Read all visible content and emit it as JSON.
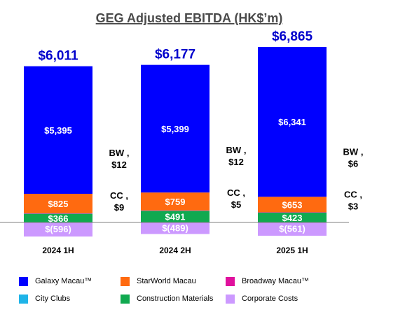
{
  "chart_data": {
    "type": "bar",
    "stacked": true,
    "title": "GEG Adjusted EBITDA (HK$’m)",
    "categories": [
      "2024 1H",
      "2024 2H",
      "2025 1H"
    ],
    "totals": [
      "$6,011",
      "$6,177",
      "$6,865"
    ],
    "total_values": [
      6011,
      6177,
      6865
    ],
    "series": [
      {
        "name": "Galaxy Macau™",
        "color": "#0000FF",
        "values": [
          5395,
          5399,
          6341
        ],
        "labels": [
          "$5,395",
          "$5,399",
          "$6,341"
        ]
      },
      {
        "name": "StarWorld Macau",
        "color": "#FF6A10",
        "values": [
          825,
          759,
          653
        ],
        "labels": [
          "$825",
          "$759",
          "$653"
        ]
      },
      {
        "name": "Broadway Macau™",
        "color": "#E0119D",
        "values": [
          12,
          12,
          6
        ],
        "labels": [
          "BW ,\n$12",
          "BW ,\n$12",
          "BW ,\n$6"
        ]
      },
      {
        "name": "City Clubs",
        "color": "#1FB4E8",
        "values": [
          9,
          5,
          3
        ],
        "labels": [
          "CC ,\n$9",
          "CC ,\n$5",
          "CC ,\n$3"
        ]
      },
      {
        "name": "Construction Materials",
        "color": "#10A950",
        "values": [
          366,
          491,
          423
        ],
        "labels": [
          "$366",
          "$491",
          "$423"
        ]
      },
      {
        "name": "Corporate Costs",
        "color": "#CC99FF",
        "values": [
          -596,
          -489,
          -561
        ],
        "labels": [
          "$(596)",
          "$(489)",
          "$(561)"
        ]
      }
    ],
    "legend_position": "bottom",
    "grid": false
  }
}
